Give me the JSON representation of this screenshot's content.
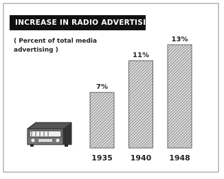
{
  "chart_data": {
    "type": "bar",
    "title": "INCREASE IN RADIO ADVERTISING",
    "subtitle": "( Percent of total media advertising )",
    "categories": [
      "1935",
      "1940",
      "1948"
    ],
    "values": [
      7,
      11,
      13
    ],
    "value_labels": [
      "7%",
      "11%",
      "13%"
    ],
    "color": "#666666"
  }
}
